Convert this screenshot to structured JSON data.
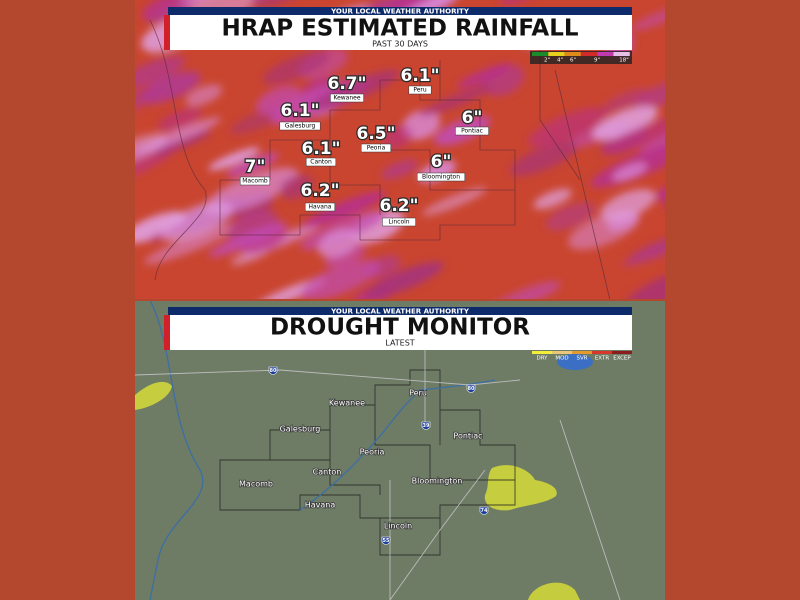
{
  "rainfall_panel": {
    "banner": "YOUR LOCAL WEATHER AUTHORITY",
    "title": "HRAP ESTIMATED RAINFALL",
    "subtitle": "PAST 30 DAYS",
    "legend": [
      "2\"",
      "4\"",
      "6\"",
      "9\"",
      "18\""
    ],
    "locations": [
      {
        "city": "Kewanee",
        "amount": "6.7\""
      },
      {
        "city": "Peru",
        "amount": "6.1\""
      },
      {
        "city": "Galesburg",
        "amount": "6.1\""
      },
      {
        "city": "Pontiac",
        "amount": "6\""
      },
      {
        "city": "Peoria",
        "amount": "6.5\""
      },
      {
        "city": "Canton",
        "amount": "6.1\""
      },
      {
        "city": "Macomb",
        "amount": "7\""
      },
      {
        "city": "Bloomington",
        "amount": "6\""
      },
      {
        "city": "Havana",
        "amount": "6.2\""
      },
      {
        "city": "Lincoln",
        "amount": "6.2\""
      }
    ]
  },
  "drought_panel": {
    "banner": "YOUR LOCAL WEATHER AUTHORITY",
    "title": "DROUGHT MONITOR",
    "subtitle": "LATEST",
    "legend": [
      "DRY",
      "MOD",
      "SVR",
      "EXTR",
      "EXCEP"
    ],
    "cities": [
      "Peru",
      "Kewanee",
      "Galesburg",
      "Pontiac",
      "Peoria",
      "Canton",
      "Macomb",
      "Bloomington",
      "Havana",
      "Lincoln"
    ],
    "highways": [
      "80",
      "80",
      "39",
      "74",
      "55"
    ]
  }
}
